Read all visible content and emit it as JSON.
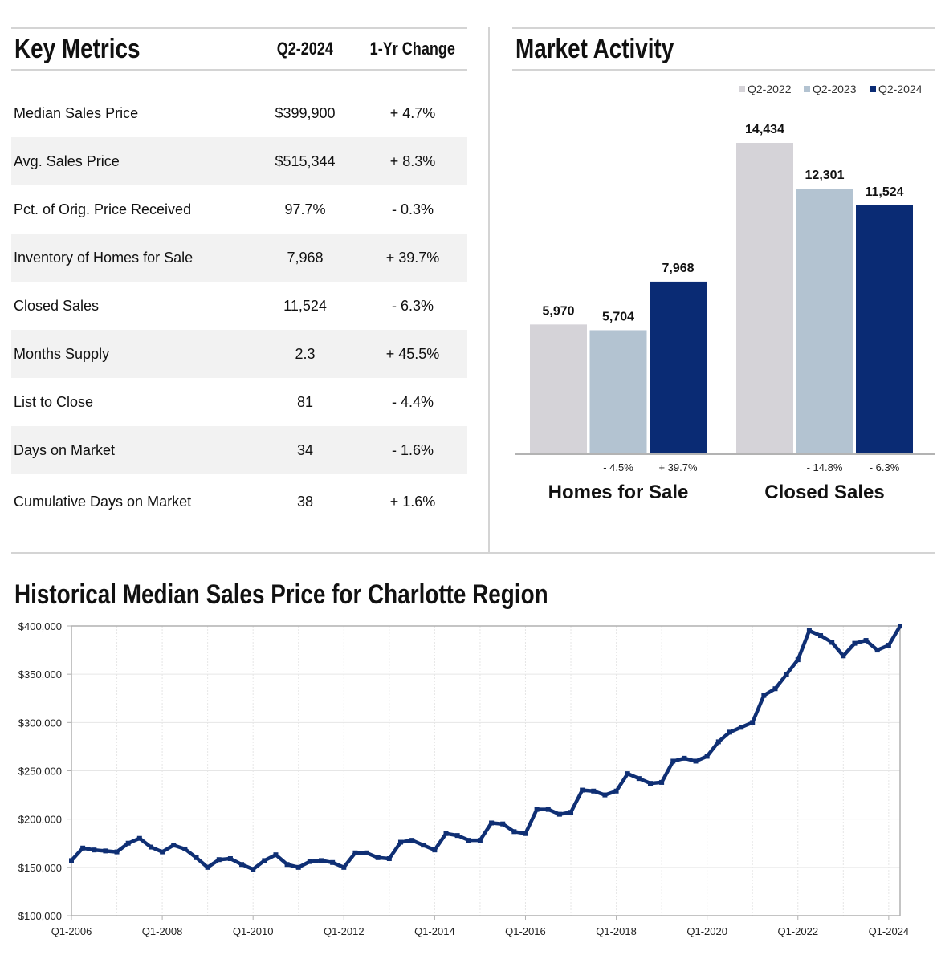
{
  "key_metrics": {
    "title": "Key Metrics",
    "col_period": "Q2-2024",
    "col_change": "1-Yr Change",
    "rows": [
      {
        "label": "Median Sales Price",
        "value": "$399,900",
        "change": "+ 4.7%"
      },
      {
        "label": "Avg. Sales Price",
        "value": "$515,344",
        "change": "+ 8.3%"
      },
      {
        "label": "Pct. of Orig. Price Received",
        "value": "97.7%",
        "change": "- 0.3%"
      },
      {
        "label": "Inventory of Homes for Sale",
        "value": "7,968",
        "change": "+ 39.7%"
      },
      {
        "label": "Closed Sales",
        "value": "11,524",
        "change": "- 6.3%"
      },
      {
        "label": "Months Supply",
        "value": "2.3",
        "change": "+ 45.5%"
      },
      {
        "label": "List to Close",
        "value": "81",
        "change": "- 4.4%"
      },
      {
        "label": "Days on Market",
        "value": "34",
        "change": "- 1.6%"
      },
      {
        "label": "Cumulative Days on Market",
        "value": "38",
        "change": "+ 1.6%"
      }
    ]
  },
  "market_activity": {
    "title": "Market Activity"
  },
  "historical": {
    "title": "Historical Median Sales Price for Charlotte Region"
  },
  "colors": {
    "q2_2022": "#d5d3d8",
    "q2_2023": "#b3c3d1",
    "q2_2024": "#0a2b74",
    "line": "#0f2f74",
    "axis": "#b0b0b0",
    "grid": "#e6e6e6"
  },
  "chart_data": [
    {
      "type": "bar",
      "title": "Market Activity",
      "legend_position": "top-right",
      "categories": [
        "Homes for Sale",
        "Closed Sales"
      ],
      "series": [
        {
          "name": "Q2-2022",
          "values": [
            5970,
            14434
          ],
          "labels": [
            "5,970",
            "14,434"
          ]
        },
        {
          "name": "Q2-2023",
          "values": [
            5704,
            12301
          ],
          "labels": [
            "5,704",
            "12,301"
          ]
        },
        {
          "name": "Q2-2024",
          "values": [
            7968,
            11524
          ],
          "labels": [
            "7,968",
            "11,524"
          ]
        }
      ],
      "changes": [
        {
          "q2_2023": "- 4.5%",
          "q2_2024": "+ 39.7%"
        },
        {
          "q2_2023": "- 14.8%",
          "q2_2024": "- 6.3%"
        }
      ],
      "ylim": [
        0,
        16000
      ],
      "grid": false
    },
    {
      "type": "line",
      "title": "Historical Median Sales Price for Charlotte Region",
      "ylim": [
        100000,
        400000
      ],
      "yticks": [
        100000,
        150000,
        200000,
        250000,
        300000,
        350000,
        400000
      ],
      "ytick_labels": [
        "$100,000",
        "$150,000",
        "$200,000",
        "$250,000",
        "$300,000",
        "$350,000",
        "$400,000"
      ],
      "xtick_labels": [
        "Q1-2006",
        "Q1-2008",
        "Q1-2010",
        "Q1-2012",
        "Q1-2014",
        "Q1-2016",
        "Q1-2018",
        "Q1-2020",
        "Q1-2022",
        "Q1-2024"
      ],
      "grid": true,
      "x_start": "Q1-2006",
      "x_end": "Q2-2024",
      "values": [
        157000,
        170000,
        168000,
        167000,
        166000,
        175000,
        180000,
        171000,
        166000,
        173000,
        169000,
        160000,
        150000,
        158000,
        159000,
        153000,
        148000,
        157000,
        163000,
        153000,
        150000,
        156000,
        157000,
        155000,
        150000,
        165000,
        165000,
        160000,
        159000,
        176000,
        178000,
        173000,
        168000,
        185000,
        183000,
        178000,
        178000,
        196000,
        195000,
        187000,
        185000,
        210000,
        210000,
        205000,
        207000,
        230000,
        229000,
        225000,
        229000,
        247000,
        242000,
        237000,
        238000,
        260000,
        263000,
        260000,
        265000,
        280000,
        290000,
        295000,
        300000,
        328000,
        335000,
        350000,
        365000,
        395000,
        390000,
        383000,
        369000,
        382000,
        385000,
        375000,
        380000,
        399900
      ]
    }
  ]
}
